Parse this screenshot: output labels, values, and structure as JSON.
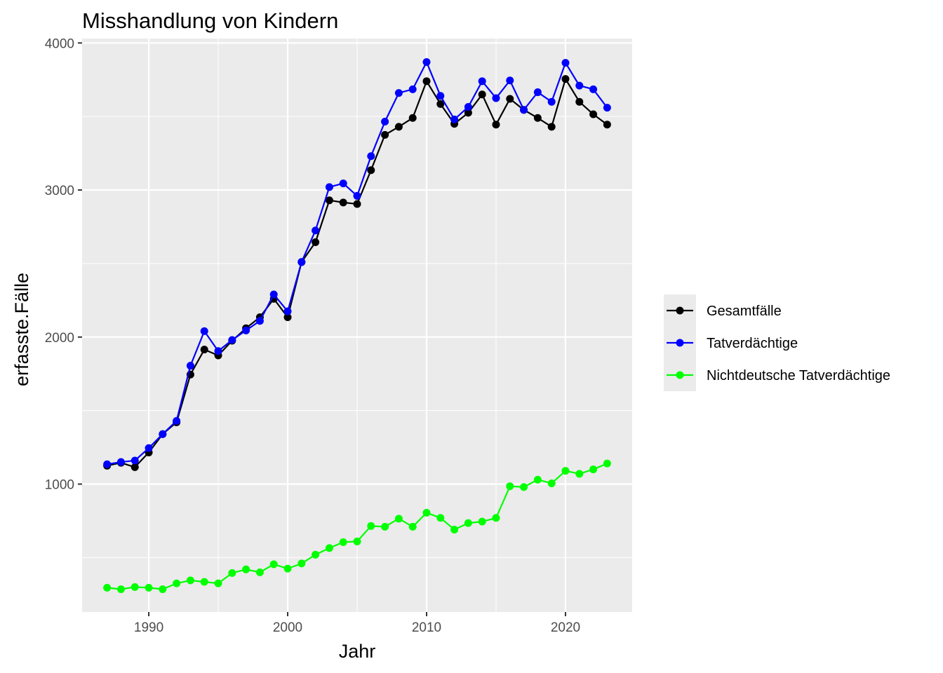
{
  "chart_data": {
    "type": "line",
    "title": "Misshandlung von Kindern",
    "xlabel": "Jahr",
    "ylabel": "erfasste.Fälle",
    "xlim": [
      1985.2,
      2024.8
    ],
    "ylim": [
      130,
      4030
    ],
    "x_ticks": [
      1990,
      2000,
      2010,
      2020
    ],
    "y_ticks": [
      1000,
      2000,
      3000,
      4000
    ],
    "x_minor": [
      1985,
      1995,
      2005,
      2015
    ],
    "y_minor": [
      500,
      1500,
      2500,
      3500
    ],
    "grid": true,
    "legend_position": "right",
    "x": [
      1987,
      1988,
      1989,
      1990,
      1991,
      1992,
      1993,
      1994,
      1995,
      1996,
      1997,
      1998,
      1999,
      2000,
      2001,
      2002,
      2003,
      2004,
      2005,
      2006,
      2007,
      2008,
      2009,
      2010,
      2011,
      2012,
      2013,
      2014,
      2015,
      2016,
      2017,
      2018,
      2019,
      2020,
      2021,
      2022,
      2023
    ],
    "series": [
      {
        "name": "Gesamtfälle",
        "color": "#000000",
        "values": [
          1125,
          1145,
          1115,
          1215,
          1340,
          1420,
          1745,
          1915,
          1875,
          1975,
          2060,
          2135,
          2260,
          2135,
          2510,
          2645,
          2930,
          2915,
          2905,
          3135,
          3375,
          3430,
          3490,
          3740,
          3585,
          3450,
          3525,
          3650,
          3445,
          3620,
          3545,
          3490,
          3430,
          3755,
          3600,
          3515,
          3445
        ]
      },
      {
        "name": "Tatverdächtige",
        "color": "#0000ff",
        "values": [
          1135,
          1150,
          1160,
          1245,
          1340,
          1430,
          1805,
          2040,
          1905,
          1980,
          2045,
          2110,
          2290,
          2175,
          2510,
          2725,
          3020,
          3045,
          2960,
          3230,
          3465,
          3660,
          3685,
          3870,
          3640,
          3480,
          3565,
          3740,
          3625,
          3745,
          3545,
          3665,
          3600,
          3865,
          3710,
          3685,
          3560
        ]
      },
      {
        "name": "Nichtdeutsche Tatverdächtige",
        "color": "#00ff00",
        "values": [
          295,
          285,
          300,
          295,
          285,
          325,
          345,
          335,
          325,
          395,
          420,
          400,
          455,
          425,
          460,
          520,
          565,
          605,
          610,
          715,
          710,
          765,
          710,
          805,
          770,
          690,
          735,
          745,
          770,
          985,
          980,
          1030,
          1005,
          1090,
          1070,
          1100,
          1140
        ]
      }
    ]
  }
}
